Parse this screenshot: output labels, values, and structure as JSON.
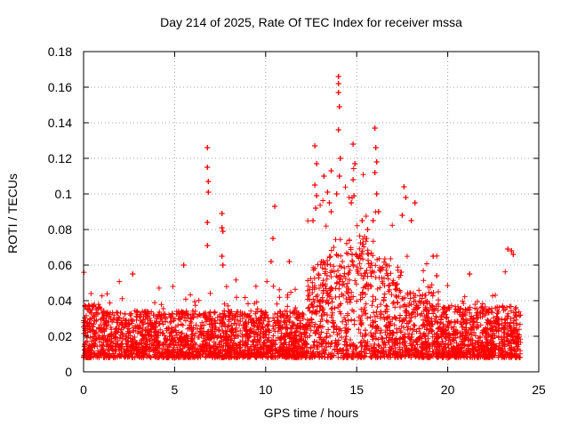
{
  "chart_data": {
    "type": "scatter",
    "title": "Day 214 of 2025, Rate Of TEC Index for receiver mssa",
    "xlabel": "GPS time / hours",
    "ylabel": "ROTI / TECUs",
    "xlim": [
      0,
      25
    ],
    "ylim": [
      0,
      0.18
    ],
    "x_ticks": [
      "0",
      "5",
      "10",
      "15",
      "20",
      "25"
    ],
    "y_ticks": [
      "0",
      "0.02",
      "0.04",
      "0.06",
      "0.08",
      "0.1",
      "0.12",
      "0.14",
      "0.16",
      "0.18"
    ],
    "x_tick_values": [
      0,
      5,
      10,
      15,
      20,
      25
    ],
    "y_tick_values": [
      0,
      0.02,
      0.04,
      0.06,
      0.08,
      0.1,
      0.12,
      0.14,
      0.16,
      0.18
    ],
    "grid": true,
    "marker": "+",
    "series": [
      {
        "name": "ROTI",
        "color": "#ff0000",
        "points": [
          [
            6.8,
            0.126
          ],
          [
            6.8,
            0.115
          ],
          [
            6.85,
            0.107
          ],
          [
            6.85,
            0.101
          ],
          [
            6.8,
            0.084
          ],
          [
            6.8,
            0.071
          ],
          [
            7.6,
            0.089
          ],
          [
            7.6,
            0.081
          ],
          [
            7.65,
            0.079
          ],
          [
            7.6,
            0.065
          ],
          [
            7.65,
            0.06
          ],
          [
            10.5,
            0.093
          ],
          [
            10.4,
            0.075
          ],
          [
            10.3,
            0.062
          ],
          [
            12.7,
            0.127
          ],
          [
            12.8,
            0.117
          ],
          [
            12.7,
            0.105
          ],
          [
            12.8,
            0.099
          ],
          [
            12.75,
            0.092
          ],
          [
            12.6,
            0.085
          ],
          [
            13.2,
            0.11
          ],
          [
            13.4,
            0.101
          ],
          [
            13.5,
            0.095
          ],
          [
            13.6,
            0.113
          ],
          [
            13.6,
            0.09
          ],
          [
            14.0,
            0.166
          ],
          [
            14.0,
            0.162
          ],
          [
            14.0,
            0.157
          ],
          [
            14.05,
            0.149
          ],
          [
            14.0,
            0.136
          ],
          [
            14.1,
            0.12
          ],
          [
            14.05,
            0.11
          ],
          [
            13.9,
            0.1
          ],
          [
            14.8,
            0.128
          ],
          [
            14.9,
            0.117
          ],
          [
            14.8,
            0.108
          ],
          [
            14.85,
            0.099
          ],
          [
            14.7,
            0.095
          ],
          [
            15.3,
            0.085
          ],
          [
            15.6,
            0.08
          ],
          [
            16.0,
            0.137
          ],
          [
            16.05,
            0.126
          ],
          [
            16.1,
            0.118
          ],
          [
            16.0,
            0.112
          ],
          [
            16.1,
            0.1
          ],
          [
            16.2,
            0.09
          ],
          [
            15.9,
            0.085
          ],
          [
            17.6,
            0.104
          ],
          [
            17.7,
            0.098
          ],
          [
            17.5,
            0.088
          ],
          [
            18.2,
            0.095
          ],
          [
            18.0,
            0.085
          ],
          [
            19.2,
            0.065
          ],
          [
            19.4,
            0.054
          ],
          [
            2.7,
            0.055
          ],
          [
            5.5,
            0.06
          ],
          [
            11.3,
            0.062
          ],
          [
            21.2,
            0.055
          ],
          [
            23.3,
            0.069
          ],
          [
            23.5,
            0.068
          ],
          [
            23.6,
            0.066
          ]
        ]
      }
    ]
  }
}
